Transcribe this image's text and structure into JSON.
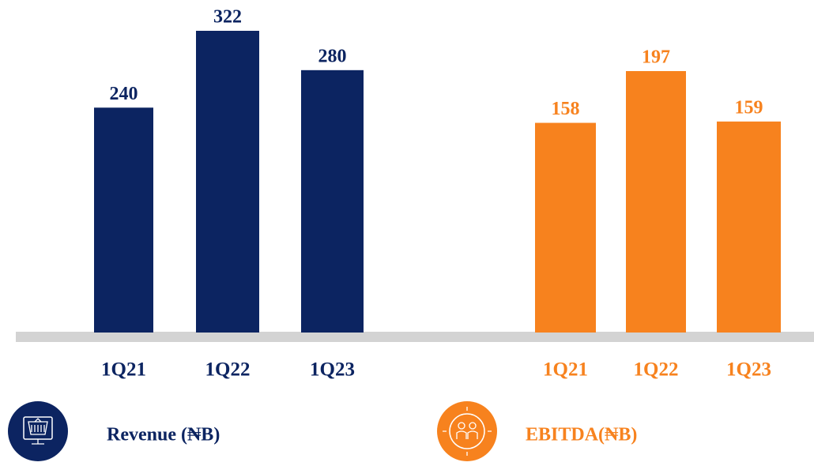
{
  "chart_data": [
    {
      "type": "bar",
      "title": "Revenue (₦B)",
      "categories": [
        "1Q21",
        "1Q22",
        "1Q23"
      ],
      "values": [
        240,
        322,
        280
      ],
      "color": "#0c2461"
    },
    {
      "type": "bar",
      "title": "EBITDA(₦B)",
      "categories": [
        "1Q21",
        "1Q22",
        "1Q23"
      ],
      "values": [
        158,
        197,
        159
      ],
      "color": "#f7821e"
    }
  ]
}
